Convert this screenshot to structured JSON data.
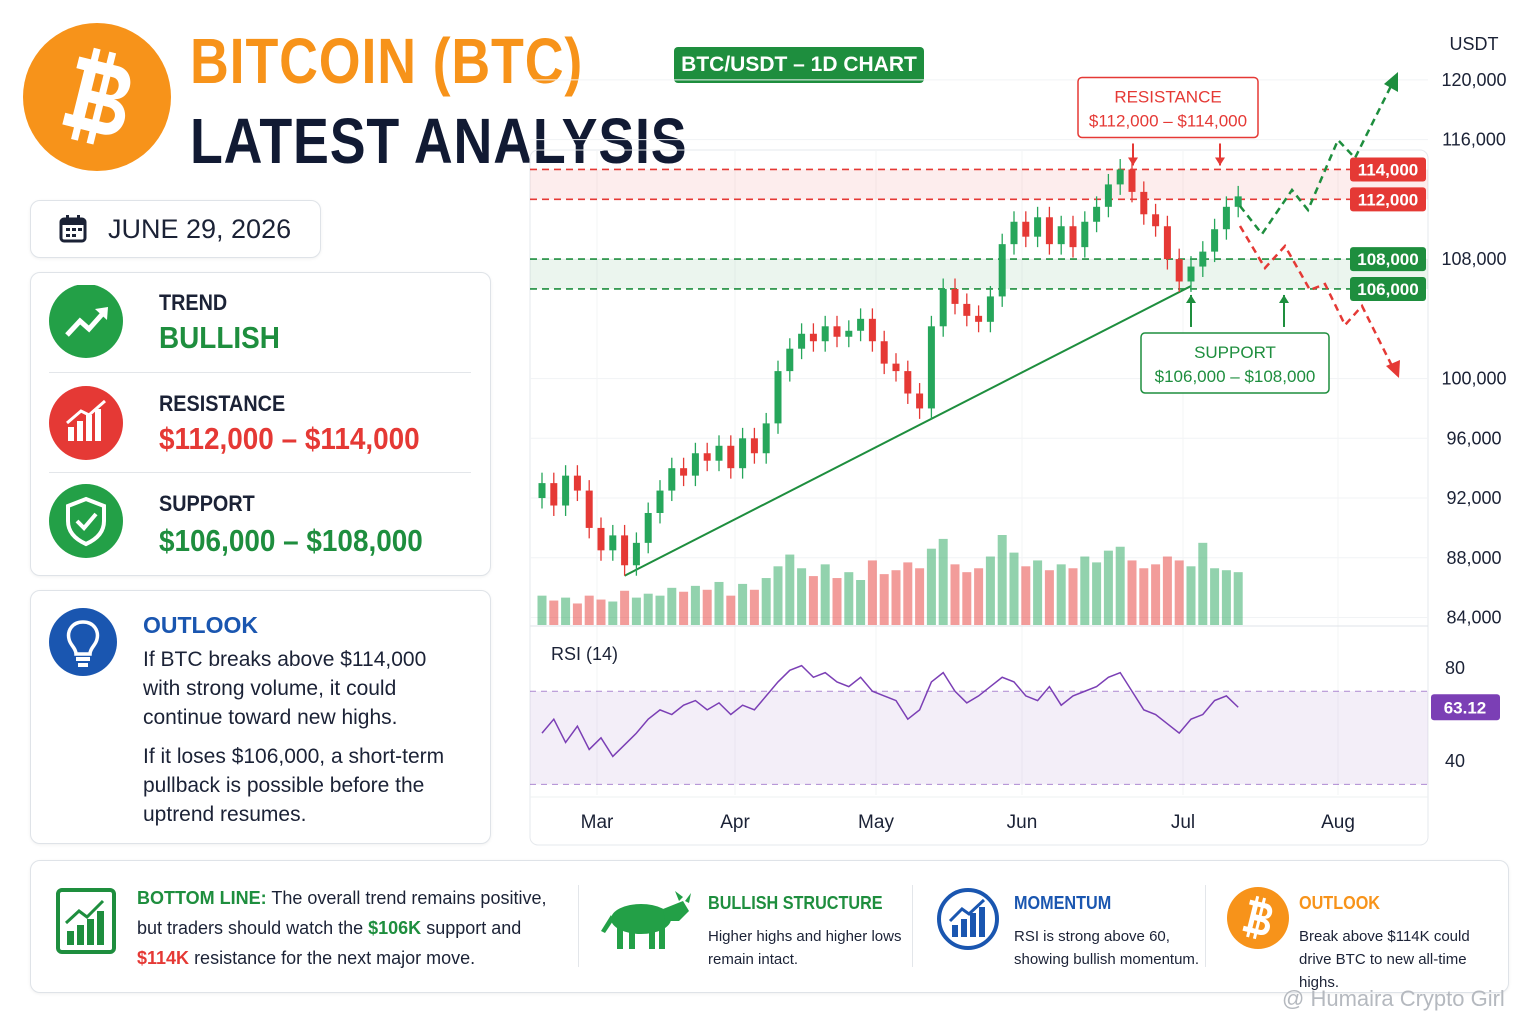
{
  "header": {
    "title_line1": "BITCOIN (BTC)",
    "title_line2": "LATEST ANALYSIS",
    "pair_badge": "BTC/USDT – 1D CHART",
    "date": "JUNE 29, 2026"
  },
  "summary": {
    "trend_label": "TREND",
    "trend_value": "BULLISH",
    "resistance_label": "RESISTANCE",
    "resistance_value": "$112,000 – $114,000",
    "support_label": "SUPPORT",
    "support_value": "$106,000 – $108,000"
  },
  "outlook": {
    "title": "OUTLOOK",
    "paragraphs": [
      "If BTC breaks above $114,000 with strong volume, it could continue toward new highs.",
      "If it loses $106,000, a short-term pullback is possible before the uptrend resumes."
    ]
  },
  "bottom": {
    "bottom_line": {
      "label": "BOTTOM LINE:",
      "parts": [
        {
          "text": "The overall trend remains positive, but traders should watch the "
        },
        {
          "text": "$106K",
          "color": "#1e8e3e"
        },
        {
          "text": " support and "
        },
        {
          "text": "$114K",
          "color": "#e53935"
        },
        {
          "text": " resistance for the next major move."
        }
      ]
    },
    "cards": [
      {
        "title": "BULLISH STRUCTURE",
        "text": "Higher highs and higher lows remain intact.",
        "color": "#1e8e3e"
      },
      {
        "title": "MOMENTUM",
        "text": "RSI is strong above 60, showing bullish momentum.",
        "color": "#1a56b0"
      },
      {
        "title": "OUTLOOK",
        "text": "Break above $114K could drive BTC to new all-time highs.",
        "color": "#f7931a"
      }
    ]
  },
  "watermark": "@ Humaira Crypto Girl",
  "chart_data": {
    "type": "candlestick",
    "y_unit": "USDT",
    "up_color": "#26a65b",
    "down_color": "#e53935",
    "grid": true,
    "open": [
      92000,
      93000,
      91500,
      93500,
      92500,
      90000,
      88500,
      89500,
      87500,
      89000,
      91000,
      92500,
      94000,
      93500,
      95000,
      94500,
      95500,
      94000,
      96000,
      95000,
      97000,
      100500,
      102000,
      103000,
      102500,
      103500,
      102800,
      103200,
      104000,
      102500,
      101000,
      100500,
      99000,
      98000,
      103500,
      106000,
      105000,
      104200,
      103800,
      105500,
      109000,
      110500,
      109500,
      110800,
      109000,
      110200,
      108800,
      110500,
      111500,
      113000,
      114000,
      112500,
      111000,
      110200,
      108000,
      106500,
      107500,
      108500,
      110000,
      111500
    ],
    "high": [
      93700,
      93700,
      94200,
      94200,
      93200,
      90700,
      90200,
      90200,
      89700,
      91700,
      93200,
      94700,
      94700,
      95700,
      95700,
      96200,
      96200,
      96700,
      96700,
      97700,
      101200,
      102700,
      103700,
      103700,
      104200,
      104200,
      103900,
      104700,
      104700,
      103200,
      101700,
      101200,
      99700,
      104200,
      106700,
      106700,
      105700,
      104900,
      106200,
      109700,
      111200,
      111200,
      111500,
      111500,
      110900,
      110900,
      111200,
      112200,
      113700,
      114700,
      114700,
      113200,
      111700,
      110900,
      108700,
      108200,
      109200,
      110700,
      112200,
      112900
    ],
    "low": [
      91300,
      90800,
      90800,
      91800,
      89300,
      87800,
      87800,
      86800,
      86800,
      88300,
      90300,
      91800,
      92800,
      92800,
      93800,
      93800,
      93300,
      93300,
      94300,
      94300,
      96300,
      99800,
      101300,
      101800,
      101800,
      102100,
      102100,
      102500,
      101800,
      100300,
      99800,
      98300,
      97300,
      97300,
      102800,
      104300,
      103500,
      103100,
      103100,
      104800,
      108300,
      108800,
      108800,
      108300,
      108300,
      108100,
      108100,
      109800,
      110800,
      112300,
      111800,
      110300,
      109500,
      107300,
      105800,
      105800,
      106800,
      107800,
      109300,
      110800
    ],
    "close": [
      93000,
      91500,
      93500,
      92500,
      90000,
      88500,
      89500,
      87500,
      89000,
      91000,
      92500,
      94000,
      93500,
      95000,
      94500,
      95500,
      94000,
      96000,
      95000,
      97000,
      100500,
      102000,
      103000,
      102500,
      103500,
      102800,
      103200,
      104000,
      102500,
      101000,
      100500,
      99000,
      98000,
      103500,
      106000,
      105000,
      104200,
      103800,
      105500,
      109000,
      110500,
      109500,
      110800,
      109000,
      110200,
      108800,
      110500,
      111500,
      113000,
      114000,
      112500,
      111000,
      110200,
      108000,
      106500,
      107500,
      108500,
      110000,
      111500,
      112200
    ],
    "volume": [
      30,
      25,
      28,
      22,
      30,
      26,
      24,
      35,
      28,
      32,
      30,
      38,
      34,
      40,
      36,
      44,
      30,
      42,
      36,
      48,
      60,
      72,
      58,
      50,
      62,
      48,
      54,
      46,
      66,
      52,
      56,
      64,
      58,
      78,
      88,
      62,
      54,
      58,
      70,
      92,
      74,
      60,
      66,
      56,
      62,
      58,
      70,
      64,
      76,
      80,
      66,
      58,
      62,
      70,
      66,
      60,
      84,
      58,
      56,
      54
    ],
    "ylim": [
      83500,
      122000
    ],
    "yticks": [
      {
        "value": 120000,
        "label": "120,000"
      },
      {
        "value": 116000,
        "label": "116,000"
      },
      {
        "value": 108000,
        "label": "108,000"
      },
      {
        "value": 100000,
        "label": "100,000"
      },
      {
        "value": 96000,
        "label": "96,000"
      },
      {
        "value": 92000,
        "label": "92,000"
      },
      {
        "value": 88000,
        "label": "88,000"
      },
      {
        "value": 84000,
        "label": "84,000"
      }
    ],
    "x_labels": [
      "Mar",
      "Apr",
      "May",
      "Jun",
      "Jul",
      "Aug"
    ],
    "zones": [
      {
        "title": "RESISTANCE",
        "range_label": "$112,000 – $114,000",
        "color": "#e53935",
        "lines": [
          {
            "value": 114000,
            "label": "114,000"
          },
          {
            "value": 112000,
            "label": "112,000"
          }
        ]
      },
      {
        "title": "SUPPORT",
        "range_label": "$106,000 – $108,000",
        "color": "#1e8e3e",
        "lines": [
          {
            "value": 108000,
            "label": "108,000"
          },
          {
            "value": 106000,
            "label": "106,000"
          }
        ]
      }
    ],
    "rsi": {
      "title": "RSI (14)",
      "color": "#7b3fb5",
      "ylim": [
        25,
        86
      ],
      "yticks": [
        80,
        40
      ],
      "bands": [
        70,
        30
      ],
      "last_label": "63.12",
      "values": [
        52,
        58,
        48,
        55,
        45,
        50,
        42,
        47,
        52,
        58,
        62,
        60,
        64,
        66,
        62,
        65,
        60,
        64,
        62,
        68,
        74,
        79,
        81,
        76,
        78,
        74,
        72,
        76,
        70,
        68,
        66,
        58,
        62,
        74,
        78,
        70,
        65,
        68,
        72,
        76,
        74,
        68,
        66,
        72,
        64,
        68,
        70,
        72,
        76,
        78,
        70,
        62,
        60,
        56,
        52,
        58,
        60,
        66,
        68,
        63.12
      ]
    }
  }
}
